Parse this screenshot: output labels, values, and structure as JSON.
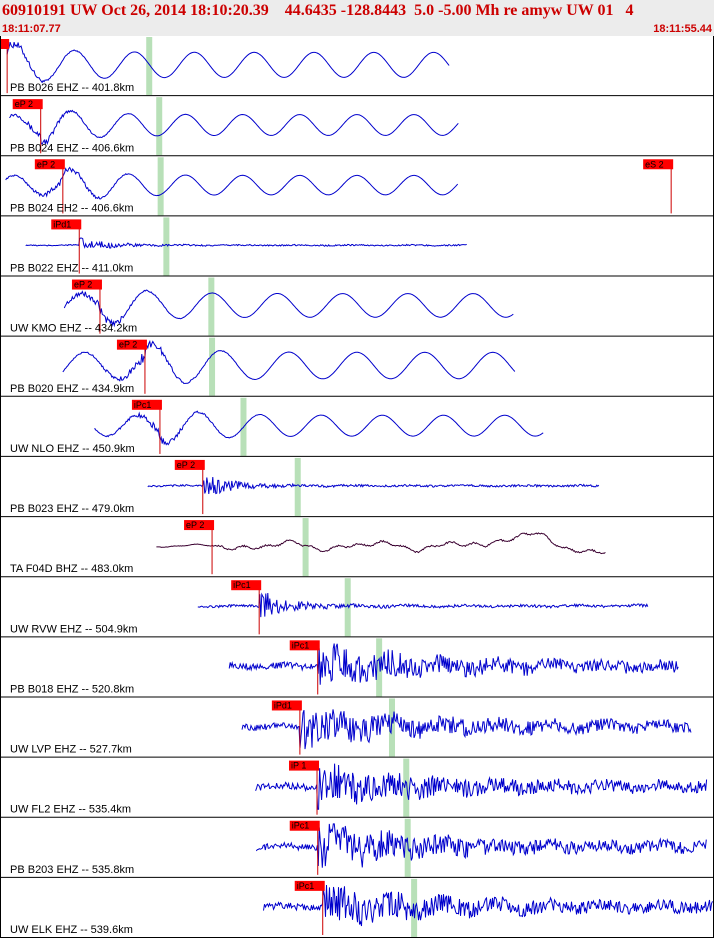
{
  "header": {
    "title": "60910191 UW Oct 26, 2014 18:10:20.39    44.6435 -128.8443  5.0 -5.00 Mh re amyw UW 01   4",
    "time_start": "18:11:07.77",
    "time_end": "18:11:55.44"
  },
  "colors": {
    "header_text": "#cc0000",
    "header_bg": "#ececec",
    "trace_default": "#0000cc",
    "trace_bhz": "#3a0030",
    "pick_box": "#ff0000",
    "pick_line": "#cc0000",
    "window_marker": "#b8e0b8"
  },
  "chart_data": {
    "type": "line",
    "title": "",
    "xlabel": "",
    "ylabel": "",
    "xlim": [
      "18:11:07.77",
      "18:11:55.44"
    ],
    "grid": false,
    "series": [
      {
        "label": "PB B026 EHZ -- 401.8km",
        "pick": "1",
        "color": "#0000cc",
        "kind": "surface",
        "pick_t": 0.01,
        "start_t": 0.01,
        "end_t": 0.63,
        "window_t": 0.209,
        "amp": 0.9,
        "period": 0.044
      },
      {
        "label": "PB B024 EHZ -- 406.6km",
        "pick": "eP 2",
        "color": "#0000cc",
        "kind": "surface",
        "pick_t": 0.057,
        "start_t": 0.013,
        "end_t": 0.642,
        "window_t": 0.223,
        "amp": 0.75,
        "period": 0.042
      },
      {
        "label": "PB B024 EH2 -- 406.6km",
        "pick": "eP 2",
        "color": "#0000cc",
        "kind": "surface",
        "pick_t": 0.088,
        "start_t": 0.008,
        "end_t": 0.642,
        "window_t": 0.225,
        "amp": 0.7,
        "period": 0.042,
        "extra_pick": "eS 2",
        "extra_pick_t": 0.94
      },
      {
        "label": "PB B022 EHZ -- 411.0km",
        "pick": "iPd1",
        "color": "#0000cc",
        "kind": "body",
        "pick_t": 0.111,
        "start_t": 0.036,
        "end_t": 0.655,
        "window_t": 0.233,
        "amp": 0.35,
        "period": 0.03
      },
      {
        "label": "UW KMO EHZ -- 434.2km",
        "pick": "eP 2",
        "color": "#0000cc",
        "kind": "surface",
        "pick_t": 0.14,
        "start_t": 0.09,
        "end_t": 0.72,
        "window_t": 0.296,
        "amp": 0.85,
        "period": 0.048
      },
      {
        "label": "PB B020 EHZ -- 434.9km",
        "pick": "eP 2",
        "color": "#0000cc",
        "kind": "surface",
        "pick_t": 0.203,
        "start_t": 0.088,
        "end_t": 0.722,
        "window_t": 0.297,
        "amp": 0.95,
        "period": 0.05
      },
      {
        "label": "UW NLO EHZ -- 450.9km",
        "pick": "iPc1",
        "color": "#0000cc",
        "kind": "surface",
        "pick_t": 0.224,
        "start_t": 0.132,
        "end_t": 0.762,
        "window_t": 0.341,
        "amp": 0.75,
        "period": 0.045
      },
      {
        "label": "PB B023 EHZ -- 479.0km",
        "pick": "eP 2",
        "color": "#0000cc",
        "kind": "body",
        "pick_t": 0.284,
        "start_t": 0.207,
        "end_t": 0.839,
        "window_t": 0.417,
        "amp": 0.55,
        "period": 0.03
      },
      {
        "label": "TA F04D BHZ -- 483.0km",
        "pick": "eP 2",
        "color": "#3a0030",
        "kind": "long",
        "pick_t": 0.297,
        "start_t": 0.219,
        "end_t": 0.849,
        "window_t": 0.428,
        "amp": 0.7,
        "period": 0.09
      },
      {
        "label": "UW RVW EHZ -- 504.9km",
        "pick": "iPc1",
        "color": "#0000cc",
        "kind": "body",
        "pick_t": 0.363,
        "start_t": 0.277,
        "end_t": 0.908,
        "window_t": 0.487,
        "amp": 0.75,
        "period": 0.03
      },
      {
        "label": "PB B018 EHZ -- 520.8km",
        "pick": "iPc1",
        "color": "#0000cc",
        "kind": "noisy",
        "pick_t": 0.445,
        "start_t": 0.321,
        "end_t": 0.951,
        "window_t": 0.531,
        "amp": 0.9,
        "period": 0.012
      },
      {
        "label": "UW LVP EHZ -- 527.7km",
        "pick": "iPd1",
        "color": "#0000cc",
        "kind": "noisy",
        "pick_t": 0.42,
        "start_t": 0.339,
        "end_t": 0.969,
        "window_t": 0.549,
        "amp": 0.9,
        "period": 0.012
      },
      {
        "label": "UW FL2 EHZ -- 535.4km",
        "pick": "iP 1",
        "color": "#0000cc",
        "kind": "noisy",
        "pick_t": 0.444,
        "start_t": 0.358,
        "end_t": 0.99,
        "window_t": 0.569,
        "amp": 0.9,
        "period": 0.012
      },
      {
        "label": "PB B203 EHZ -- 535.8km",
        "pick": "iPc1",
        "color": "#0000cc",
        "kind": "noisy",
        "pick_t": 0.445,
        "start_t": 0.359,
        "end_t": 0.99,
        "window_t": 0.571,
        "amp": 0.9,
        "period": 0.012
      },
      {
        "label": "UW ELK EHZ -- 539.6km",
        "pick": "iPc1",
        "color": "#0000cc",
        "kind": "noisy",
        "pick_t": 0.452,
        "start_t": 0.369,
        "end_t": 0.999,
        "window_t": 0.58,
        "amp": 0.9,
        "period": 0.012
      }
    ]
  }
}
